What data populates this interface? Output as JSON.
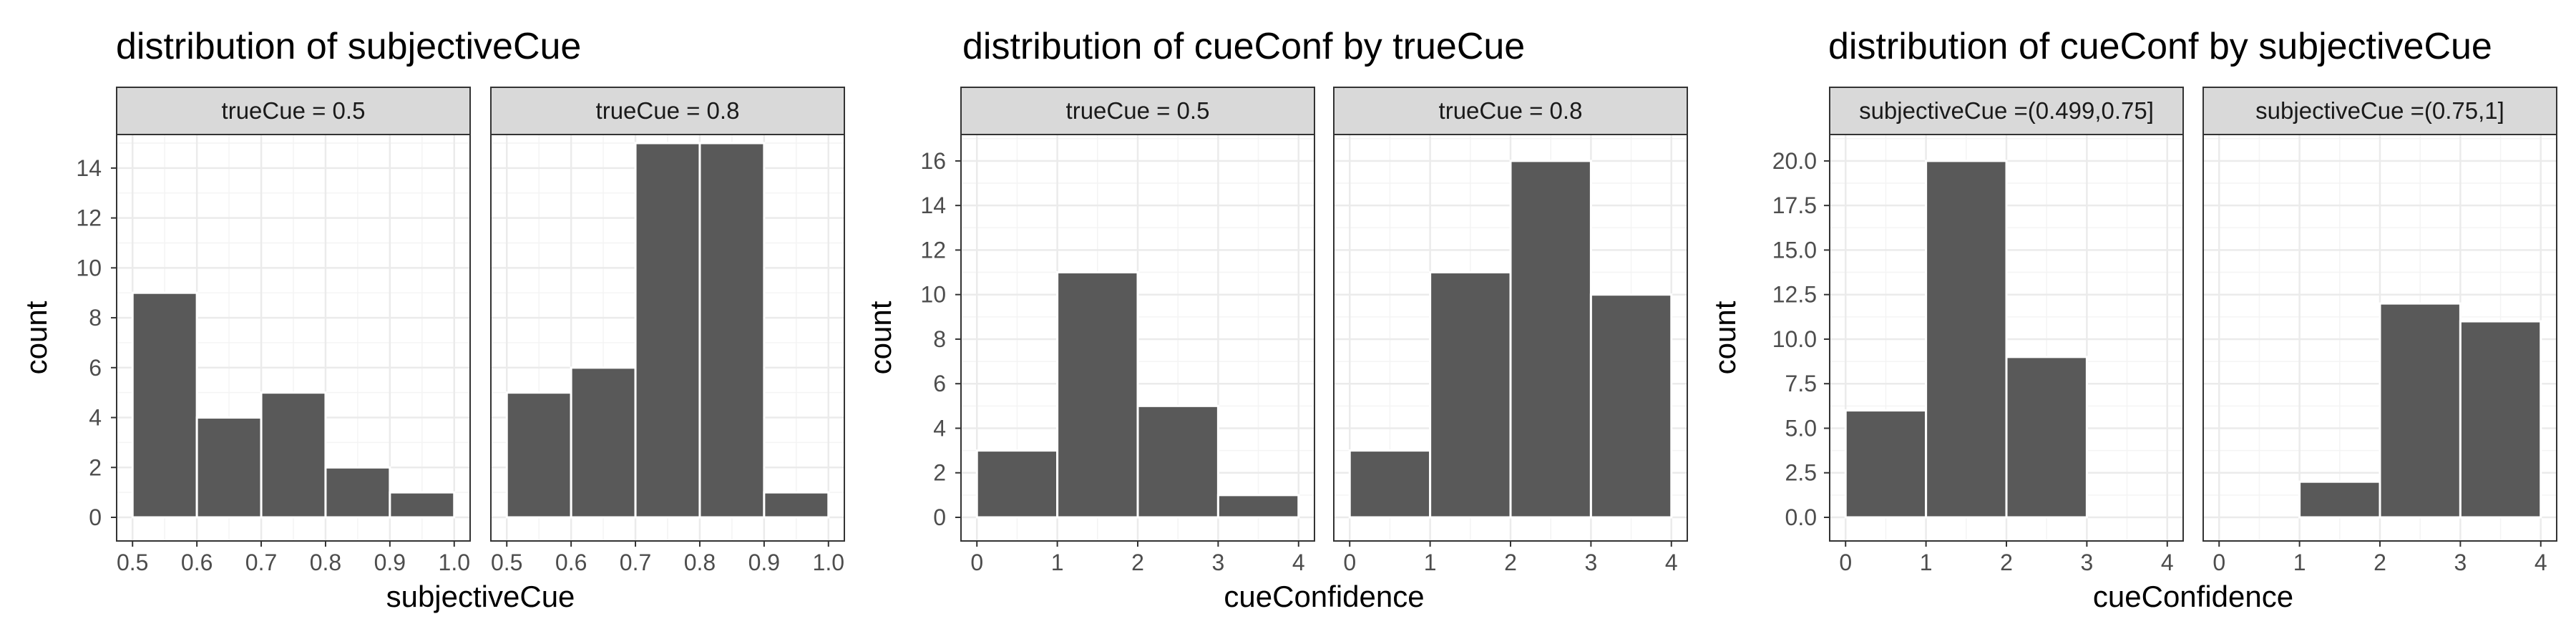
{
  "chart_data": [
    {
      "type": "bar",
      "title": "distribution of subjectiveCue",
      "xlabel": "subjectiveCue",
      "ylabel": "count",
      "xlim": [
        0.5,
        1.0
      ],
      "ylim": [
        0,
        15
      ],
      "xticks": [
        0.5,
        0.6,
        0.7,
        0.8,
        0.9,
        1.0
      ],
      "xtick_labels": [
        "0.5",
        "0.6",
        "0.7",
        "0.8",
        "0.9",
        "1.0"
      ],
      "yticks": [
        0,
        2,
        4,
        6,
        8,
        10,
        12,
        14
      ],
      "ytick_labels": [
        "0",
        "2",
        "4",
        "6",
        "8",
        "10",
        "12",
        "14"
      ],
      "grid": true,
      "panels": [
        {
          "strip": "trueCue =  0.5",
          "bins": [
            {
              "x0": 0.5,
              "x1": 0.6,
              "count": 9
            },
            {
              "x0": 0.6,
              "x1": 0.7,
              "count": 4
            },
            {
              "x0": 0.7,
              "x1": 0.8,
              "count": 5
            },
            {
              "x0": 0.8,
              "x1": 0.9,
              "count": 2
            },
            {
              "x0": 0.9,
              "x1": 1.0,
              "count": 1
            }
          ]
        },
        {
          "strip": "trueCue =  0.8",
          "bins": [
            {
              "x0": 0.5,
              "x1": 0.6,
              "count": 5
            },
            {
              "x0": 0.6,
              "x1": 0.7,
              "count": 6
            },
            {
              "x0": 0.7,
              "x1": 0.8,
              "count": 15
            },
            {
              "x0": 0.8,
              "x1": 0.9,
              "count": 15
            },
            {
              "x0": 0.9,
              "x1": 1.0,
              "count": 1
            }
          ]
        }
      ]
    },
    {
      "type": "bar",
      "title": "distribution of cueConf by trueCue",
      "xlabel": "cueConfidence",
      "ylabel": "count",
      "xlim": [
        0,
        4
      ],
      "ylim": [
        0,
        16.8
      ],
      "xticks": [
        0,
        1,
        2,
        3,
        4
      ],
      "xtick_labels": [
        "0",
        "1",
        "2",
        "3",
        "4"
      ],
      "yticks": [
        0,
        2,
        4,
        6,
        8,
        10,
        12,
        14,
        16
      ],
      "ytick_labels": [
        "0",
        "2",
        "4",
        "6",
        "8",
        "10",
        "12",
        "14",
        "16"
      ],
      "grid": true,
      "panels": [
        {
          "strip": "trueCue =  0.5",
          "bins": [
            {
              "x0": 0,
              "x1": 1,
              "count": 3
            },
            {
              "x0": 1,
              "x1": 2,
              "count": 11
            },
            {
              "x0": 2,
              "x1": 3,
              "count": 5
            },
            {
              "x0": 3,
              "x1": 4,
              "count": 1
            }
          ]
        },
        {
          "strip": "trueCue =  0.8",
          "bins": [
            {
              "x0": 0,
              "x1": 1,
              "count": 3
            },
            {
              "x0": 1,
              "x1": 2,
              "count": 11
            },
            {
              "x0": 2,
              "x1": 3,
              "count": 16
            },
            {
              "x0": 3,
              "x1": 4,
              "count": 10
            }
          ]
        }
      ]
    },
    {
      "type": "bar",
      "title": "distribution of cueConf by subjectiveCue",
      "xlabel": "cueConfidence",
      "ylabel": "count",
      "xlim": [
        0,
        4
      ],
      "ylim": [
        0,
        21
      ],
      "xticks": [
        0,
        1,
        2,
        3,
        4
      ],
      "xtick_labels": [
        "0",
        "1",
        "2",
        "3",
        "4"
      ],
      "yticks": [
        0,
        2.5,
        5,
        7.5,
        10,
        12.5,
        15,
        17.5,
        20
      ],
      "ytick_labels": [
        "0.0",
        "2.5",
        "5.0",
        "7.5",
        "10.0",
        "12.5",
        "15.0",
        "17.5",
        "20.0"
      ],
      "grid": true,
      "panels": [
        {
          "strip": "subjectiveCue =(0.499,0.75]",
          "bins": [
            {
              "x0": 0,
              "x1": 1,
              "count": 6
            },
            {
              "x0": 1,
              "x1": 2,
              "count": 20
            },
            {
              "x0": 2,
              "x1": 3,
              "count": 9
            }
          ]
        },
        {
          "strip": "subjectiveCue =(0.75,1]",
          "bins": [
            {
              "x0": 1,
              "x1": 2,
              "count": 2
            },
            {
              "x0": 2,
              "x1": 3,
              "count": 12
            },
            {
              "x0": 3,
              "x1": 4,
              "count": 11
            }
          ]
        }
      ]
    }
  ],
  "colors": {
    "bar_fill": "#595959",
    "bar_outline": "#ffffff",
    "strip_fill": "#d9d9d9",
    "panel_border": "#333333",
    "grid_major": "#ebebeb",
    "grid_minor": "#f4f4f4",
    "tick_text": "#4d4d4d"
  }
}
